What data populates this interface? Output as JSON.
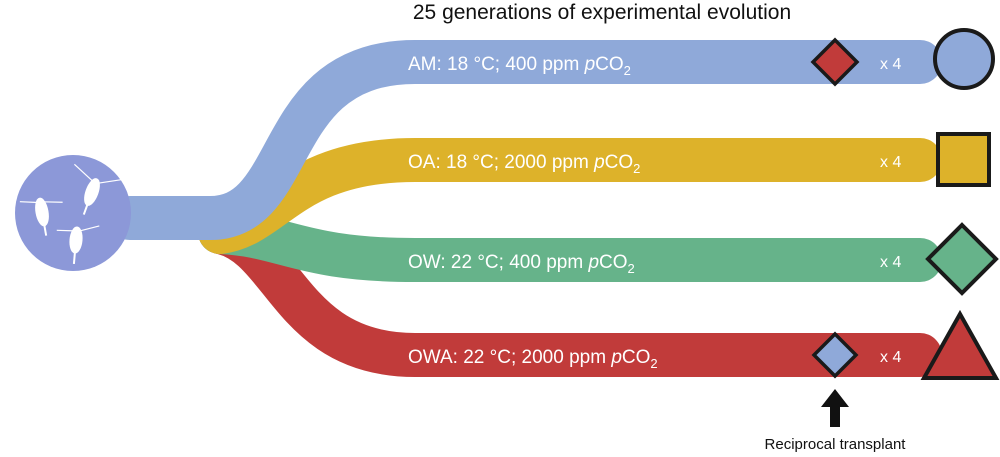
{
  "title": "25 generations of experimental evolution",
  "colors": {
    "am": "#8FA9D9",
    "oa": "#DDB22A",
    "ow": "#66B38A",
    "owa": "#C13B3A",
    "source": "#8C98D8",
    "outline": "#1a1a1a"
  },
  "branches": [
    {
      "id": "am",
      "prefix": "AM: 18 °C;  400 ppm ",
      "italic": "p",
      "chem": "CO",
      "sub": "2",
      "replicates": "x 4",
      "symbol": "circle-icon"
    },
    {
      "id": "oa",
      "prefix": "OA: 18 °C; 2000 ppm ",
      "italic": "p",
      "chem": "CO",
      "sub": "2",
      "replicates": "x 4",
      "symbol": "square-icon"
    },
    {
      "id": "ow",
      "prefix": "OW: 22 °C;  400 ppm ",
      "italic": "p",
      "chem": "CO",
      "sub": "2",
      "replicates": "x 4",
      "symbol": "diamond-icon"
    },
    {
      "id": "owa",
      "prefix": "OWA: 22 °C; 2000 ppm ",
      "italic": "p",
      "chem": "CO",
      "sub": "2",
      "replicates": "x 4",
      "symbol": "triangle-icon"
    }
  ],
  "annotation": "Reciprocal transplant"
}
